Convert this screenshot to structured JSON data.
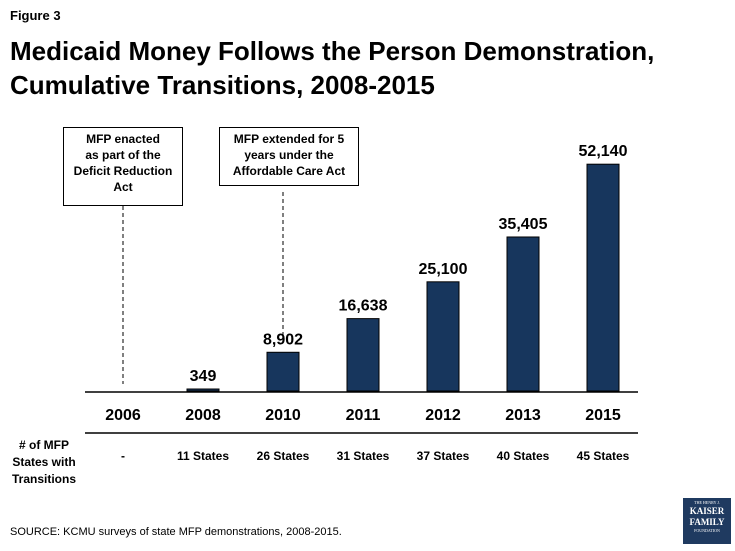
{
  "figure_label": "Figure 3",
  "title_lines": [
    "Medicaid Money Follows the Person Demonstration,",
    "Cumulative Transitions, 2008-2015"
  ],
  "chart_data": {
    "type": "bar",
    "categories": [
      "2006",
      "2008",
      "2010",
      "2011",
      "2012",
      "2013",
      "2015"
    ],
    "values": [
      0,
      349,
      8902,
      16638,
      25100,
      35405,
      52140
    ],
    "data_labels": [
      "",
      "349",
      "8,902",
      "16,638",
      "25,100",
      "35,405",
      "52,140"
    ],
    "ylim": [
      0,
      60000
    ],
    "bar_color": "#17365d",
    "grid": false,
    "legend": "none",
    "title": "Medicaid Money Follows the Person Demonstration, Cumulative Transitions, 2008-2015",
    "xlabel": "",
    "ylabel": "",
    "row_label_lines": [
      "# of MFP",
      "States with",
      "Transitions"
    ],
    "states": [
      "-",
      "11 States",
      "26 States",
      "31 States",
      "37 States",
      "40 States",
      "45 States"
    ],
    "annotations": [
      {
        "category": "2006",
        "lines": [
          "MFP enacted",
          "as part of the",
          "Deficit Reduction",
          "Act"
        ]
      },
      {
        "category": "2010",
        "lines": [
          "MFP extended for 5",
          "years under the",
          "Affordable Care Act"
        ]
      }
    ]
  },
  "source": "SOURCE: KCMU surveys of state MFP demonstrations, 2008-2015.",
  "logo": {
    "small_top": "THE HENRY J.",
    "lines": [
      "KAISER",
      "FAMILY"
    ],
    "small_bottom": "FOUNDATION",
    "color": "#1f3a60"
  }
}
